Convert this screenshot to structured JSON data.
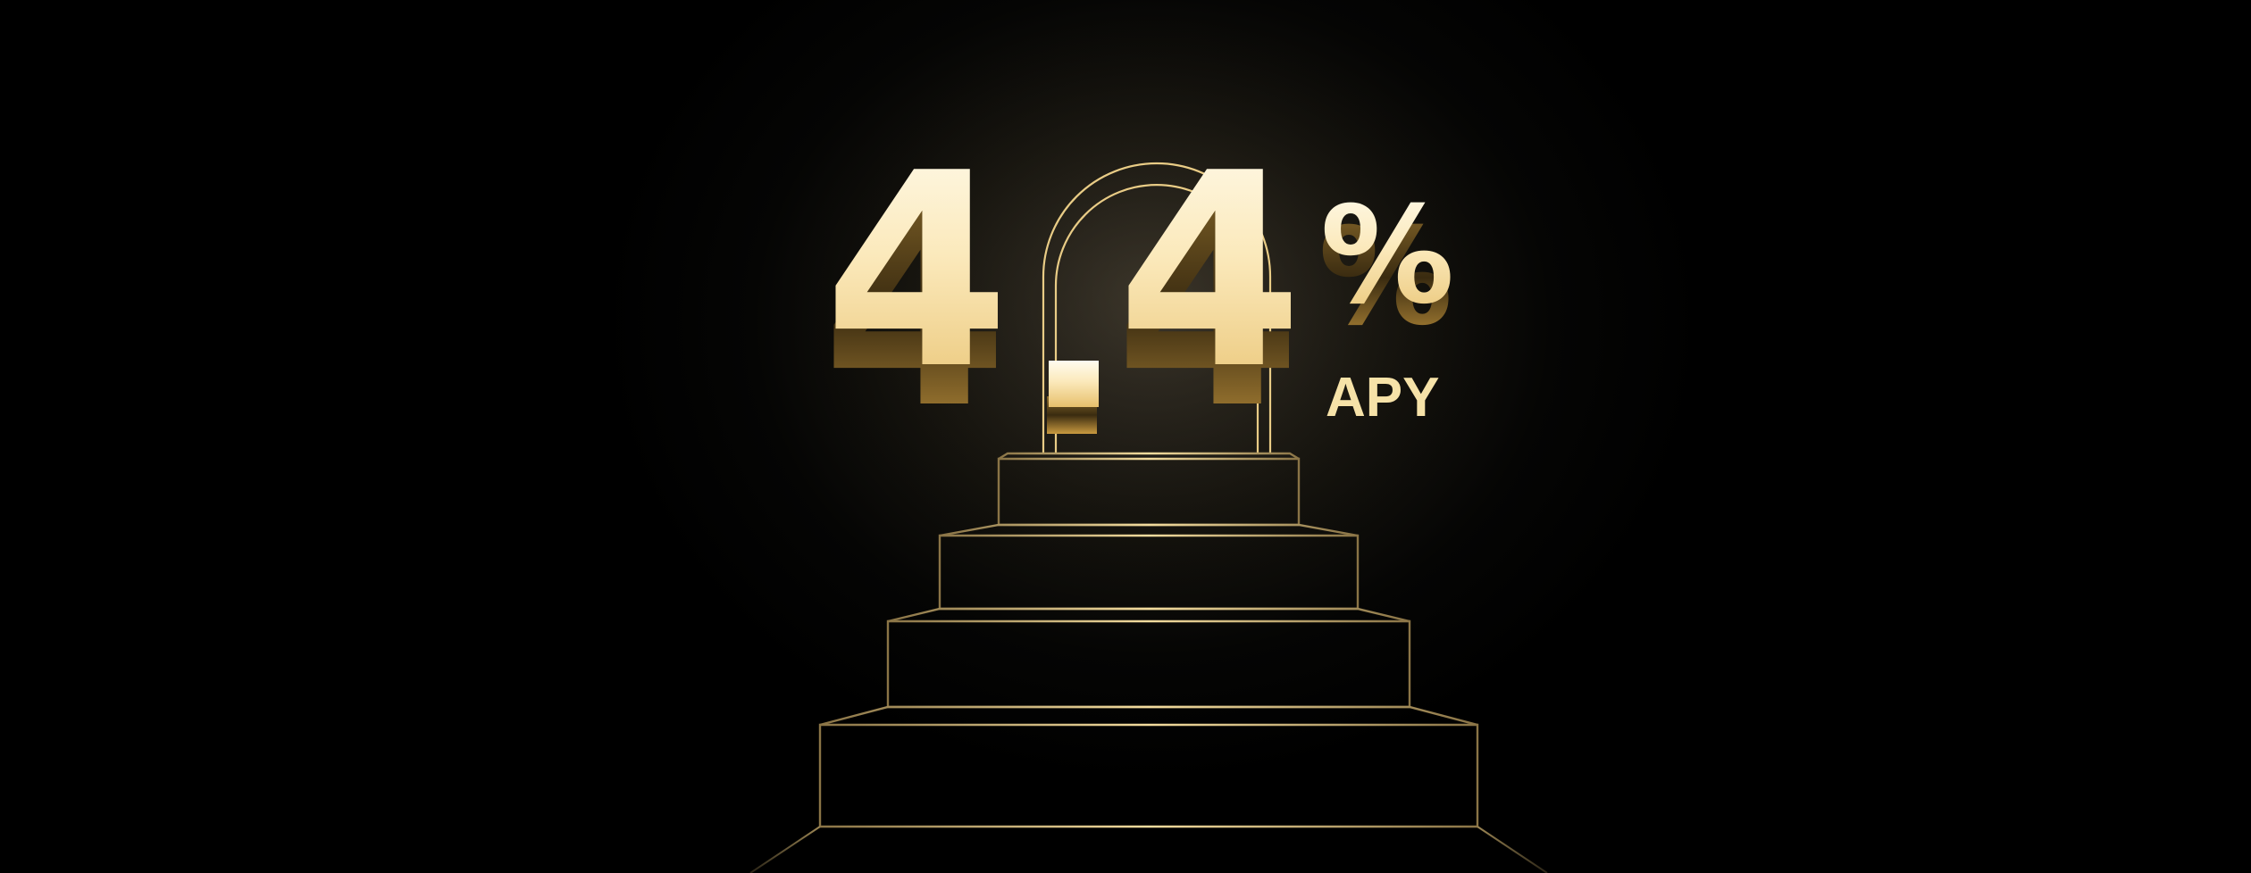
{
  "hero": {
    "rate_digit_1": "4",
    "rate_decimal_point": ".",
    "rate_digit_2": "4",
    "percent_sign": "%",
    "rate_label": "APY"
  },
  "colors": {
    "background": "#000000",
    "gold_light": "#fff6d8",
    "gold_mid": "#f3d68a",
    "gold_dark": "#c9a24a",
    "outline_gold": "#e9cc86"
  },
  "icons": [
    "staircase-outline",
    "arch-doorway-outline"
  ]
}
